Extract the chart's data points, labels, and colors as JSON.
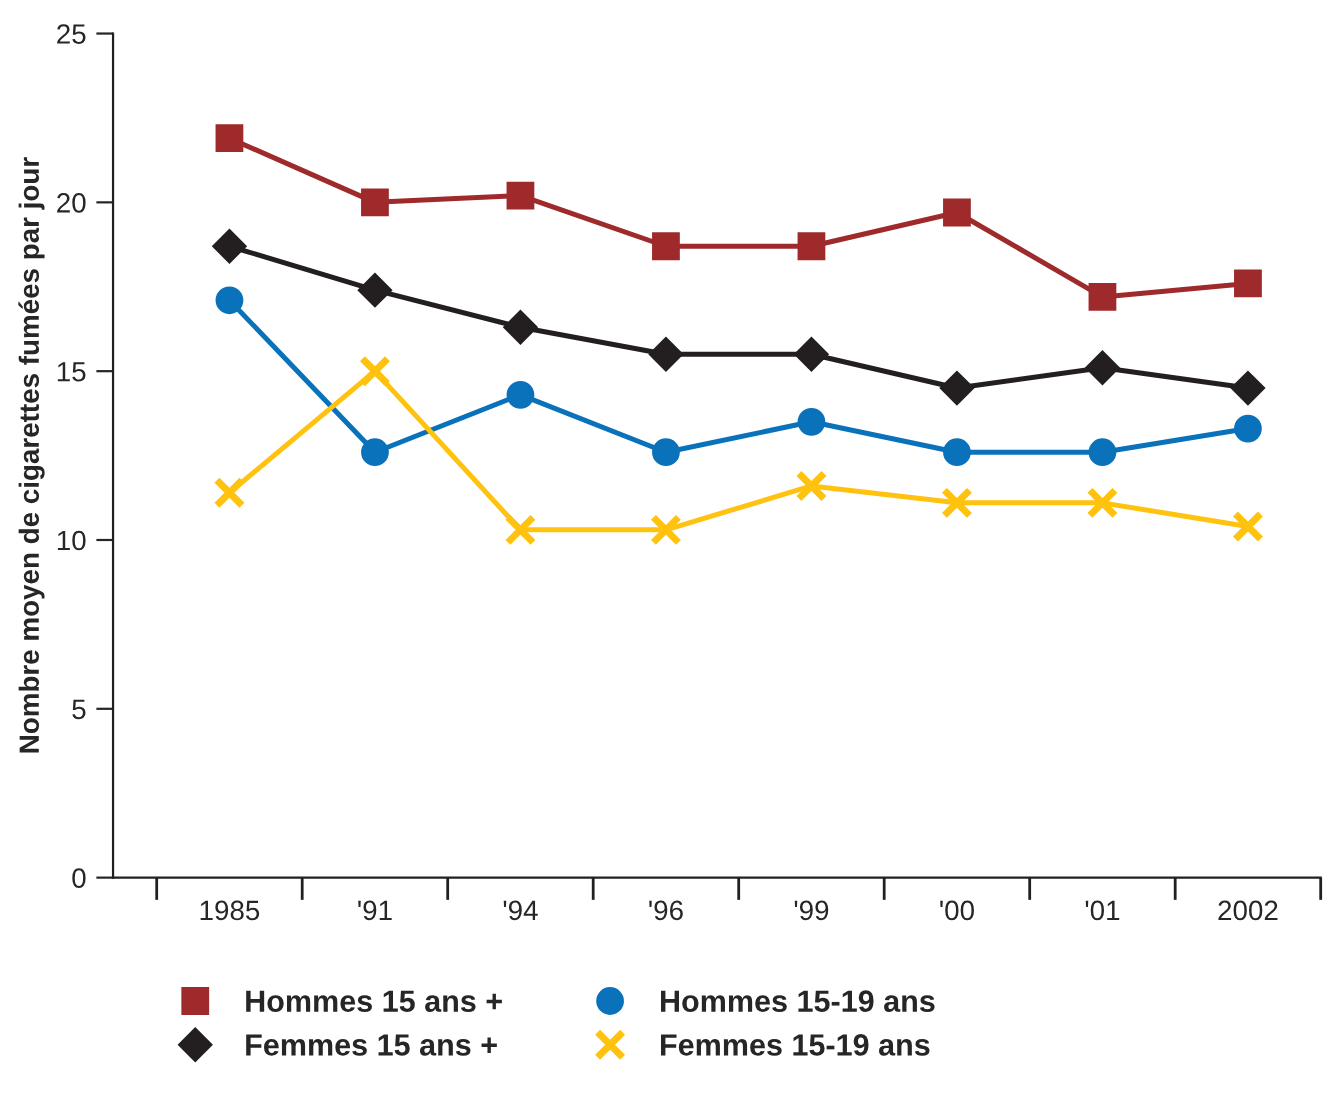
{
  "chart_data": {
    "type": "line",
    "ylabel": "Nombre moyen de cigarettes fumées par jour",
    "categories": [
      "1985",
      "'91",
      "'94",
      "'96",
      "'99",
      "'00",
      "'01",
      "2002"
    ],
    "series": [
      {
        "name": "Hommes 15 ans +",
        "color": "#9e2a2b",
        "marker": "square",
        "values": [
          21.9,
          20.0,
          20.2,
          18.7,
          18.7,
          19.7,
          17.2,
          17.6
        ]
      },
      {
        "name": "Femmes 15 ans +",
        "color": "#231f20",
        "marker": "diamond",
        "values": [
          18.7,
          17.4,
          16.3,
          15.5,
          15.5,
          14.5,
          15.1,
          14.5
        ]
      },
      {
        "name": "Hommes 15-19 ans",
        "color": "#0a72ba",
        "marker": "circle",
        "values": [
          17.1,
          12.6,
          14.3,
          12.6,
          13.5,
          12.6,
          12.6,
          13.3
        ]
      },
      {
        "name": "Femmes 15-19 ans",
        "color": "#ffc20e",
        "marker": "cross",
        "values": [
          11.4,
          15.0,
          10.3,
          10.3,
          11.6,
          11.1,
          11.1,
          10.4
        ]
      }
    ],
    "ylim": [
      0,
      25
    ],
    "yticks": [
      0,
      5,
      10,
      15,
      20,
      25
    ],
    "grid": false,
    "legend": "bottom",
    "line_style": "solid"
  }
}
